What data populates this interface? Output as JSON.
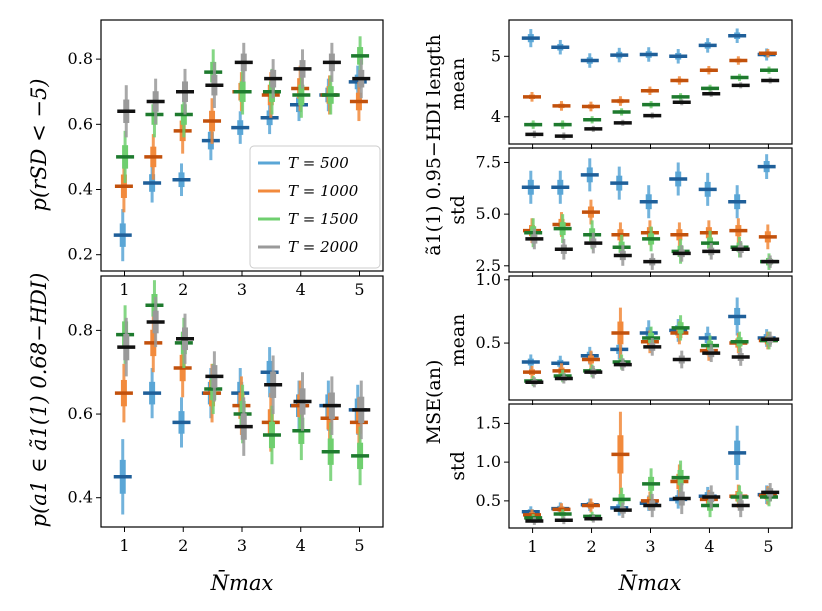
{
  "colors": {
    "T500": "#5aa6d6",
    "T1000": "#f28a3c",
    "T1500": "#6fcf6f",
    "T2000": "#9a9a9a",
    "T500_dark": "#1f5f99",
    "T1000_dark": "#c2510c",
    "T1500_dark": "#1e7a2e",
    "T2000_dark": "#111111"
  },
  "labels": {
    "xlabel": "N̄max",
    "left_top_ylabel": "p(rSD < −5)",
    "left_bottom_ylabel": "p(a1 ∈ ã1(1) 0.68−HDI)",
    "right_group1_ylabel": "ã1(1) 0.95−HDI length",
    "right_group2_ylabel": "MSE(an)",
    "right_r1_sub": "mean",
    "right_r2_sub": "std",
    "right_r3_sub": "mean",
    "right_r4_sub": "std"
  },
  "chart_data": [
    {
      "id": "left_top",
      "type": "scatter",
      "ylabel": "p(rSD < −5)",
      "xlabel": "N̄max",
      "xlim": [
        0.6,
        5.4
      ],
      "ylim": [
        0.15,
        0.92
      ],
      "yticks": [
        0.2,
        0.4,
        0.6,
        0.8
      ],
      "ytick_labels": [
        "0.2",
        "0.4",
        "0.6",
        "0.8"
      ],
      "xticks": [
        1,
        2,
        3,
        4,
        5
      ],
      "xtick_labels": [
        "1",
        "2",
        "3",
        "4",
        "5"
      ],
      "legend": {
        "location": "lower-right",
        "entries": [
          "T = 500",
          "T = 1000",
          "T = 1500",
          "T = 2000"
        ]
      },
      "x": [
        1.0,
        1.5,
        2.0,
        2.5,
        3.0,
        3.5,
        4.0,
        4.5,
        5.0
      ],
      "series": [
        {
          "name": "T = 500",
          "values": [
            0.26,
            0.42,
            0.43,
            0.55,
            0.59,
            0.62,
            0.66,
            0.69,
            0.73
          ],
          "spread": [
            0.08,
            0.06,
            0.05,
            0.06,
            0.05,
            0.05,
            0.05,
            0.05,
            0.05
          ]
        },
        {
          "name": "T = 1000",
          "values": [
            0.41,
            0.5,
            0.58,
            0.61,
            0.7,
            0.69,
            0.71,
            0.69,
            0.67
          ],
          "spread": [
            0.08,
            0.07,
            0.07,
            0.07,
            0.06,
            0.07,
            0.07,
            0.06,
            0.06
          ]
        },
        {
          "name": "T = 1500",
          "values": [
            0.5,
            0.63,
            0.63,
            0.76,
            0.7,
            0.7,
            0.69,
            0.69,
            0.81
          ],
          "spread": [
            0.08,
            0.07,
            0.07,
            0.07,
            0.07,
            0.07,
            0.07,
            0.06,
            0.06
          ]
        },
        {
          "name": "T = 2000",
          "values": [
            0.64,
            0.67,
            0.7,
            0.72,
            0.79,
            0.74,
            0.77,
            0.79,
            0.74
          ],
          "spread": [
            0.08,
            0.07,
            0.07,
            0.07,
            0.06,
            0.06,
            0.06,
            0.06,
            0.06
          ]
        }
      ]
    },
    {
      "id": "left_bottom",
      "type": "scatter",
      "ylabel": "p(a1 ∈ ã1(1) 0.68−HDI)",
      "xlabel": "N̄max",
      "xlim": [
        0.6,
        5.4
      ],
      "ylim": [
        0.33,
        0.93
      ],
      "yticks": [
        0.4,
        0.6,
        0.8
      ],
      "ytick_labels": [
        "0.4",
        "0.6",
        "0.8"
      ],
      "xticks": [
        1,
        2,
        3,
        4,
        5
      ],
      "xtick_labels": [
        "1",
        "2",
        "3",
        "4",
        "5"
      ],
      "x": [
        1.0,
        1.5,
        2.0,
        2.5,
        3.0,
        3.5,
        4.0,
        4.5,
        5.0
      ],
      "series": [
        {
          "name": "T = 500",
          "values": [
            0.45,
            0.65,
            0.58,
            0.65,
            0.65,
            0.7,
            0.62,
            0.62,
            0.61
          ],
          "spread": [
            0.09,
            0.06,
            0.06,
            0.06,
            0.06,
            0.06,
            0.06,
            0.06,
            0.06
          ]
        },
        {
          "name": "T = 1000",
          "values": [
            0.65,
            0.77,
            0.71,
            0.65,
            0.62,
            0.58,
            0.62,
            0.59,
            0.58
          ],
          "spread": [
            0.07,
            0.07,
            0.07,
            0.07,
            0.07,
            0.07,
            0.06,
            0.06,
            0.06
          ]
        },
        {
          "name": "T = 1500",
          "values": [
            0.79,
            0.86,
            0.77,
            0.66,
            0.6,
            0.55,
            0.56,
            0.51,
            0.5
          ],
          "spread": [
            0.07,
            0.06,
            0.06,
            0.06,
            0.07,
            0.07,
            0.07,
            0.07,
            0.07
          ]
        },
        {
          "name": "T = 2000",
          "values": [
            0.76,
            0.82,
            0.78,
            0.69,
            0.57,
            0.67,
            0.63,
            0.62,
            0.61
          ],
          "spread": [
            0.07,
            0.06,
            0.06,
            0.06,
            0.07,
            0.07,
            0.07,
            0.07,
            0.07
          ]
        }
      ]
    },
    {
      "id": "right_r1",
      "type": "scatter",
      "ylabel": "mean",
      "xlim": [
        0.6,
        5.4
      ],
      "ylim": [
        3.55,
        5.6
      ],
      "yticks": [
        4,
        5
      ],
      "ytick_labels": [
        "4",
        "5"
      ],
      "xticks": [
        1,
        2,
        3,
        4,
        5
      ],
      "x": [
        1.0,
        1.5,
        2.0,
        2.5,
        3.0,
        3.5,
        4.0,
        4.5,
        5.0
      ],
      "series": [
        {
          "name": "T = 500",
          "values": [
            5.3,
            5.15,
            4.93,
            5.02,
            5.03,
            5.0,
            5.18,
            5.34,
            5.03
          ],
          "spread": [
            0.15,
            0.12,
            0.12,
            0.12,
            0.12,
            0.12,
            0.12,
            0.12,
            0.1
          ]
        },
        {
          "name": "T = 1000",
          "values": [
            4.33,
            4.18,
            4.17,
            4.26,
            4.43,
            4.6,
            4.77,
            4.93,
            5.05
          ],
          "spread": [
            0.08,
            0.08,
            0.08,
            0.08,
            0.07,
            0.07,
            0.07,
            0.07,
            0.07
          ]
        },
        {
          "name": "T = 1500",
          "values": [
            3.87,
            3.87,
            3.95,
            4.08,
            4.2,
            4.33,
            4.47,
            4.65,
            4.77
          ],
          "spread": [
            0.07,
            0.07,
            0.06,
            0.06,
            0.06,
            0.06,
            0.06,
            0.06,
            0.06
          ]
        },
        {
          "name": "T = 2000",
          "values": [
            3.71,
            3.68,
            3.8,
            3.9,
            4.02,
            4.24,
            4.38,
            4.52,
            4.6
          ],
          "spread": [
            0.06,
            0.06,
            0.05,
            0.05,
            0.05,
            0.05,
            0.05,
            0.05,
            0.05
          ]
        }
      ]
    },
    {
      "id": "right_r2",
      "type": "scatter",
      "ylabel": "std",
      "xlim": [
        0.6,
        5.4
      ],
      "ylim": [
        2.2,
        8.2
      ],
      "yticks": [
        2.5,
        5.0,
        7.5
      ],
      "ytick_labels": [
        "2.5",
        "5.0",
        "7.5"
      ],
      "xticks": [
        1,
        2,
        3,
        4,
        5
      ],
      "x": [
        1.0,
        1.5,
        2.0,
        2.5,
        3.0,
        3.5,
        4.0,
        4.5,
        5.0
      ],
      "series": [
        {
          "name": "T = 500",
          "values": [
            6.3,
            6.3,
            6.9,
            6.5,
            5.6,
            6.7,
            6.2,
            5.6,
            7.3
          ],
          "spread": [
            0.8,
            0.8,
            0.8,
            0.8,
            0.8,
            0.8,
            0.8,
            0.8,
            0.6
          ]
        },
        {
          "name": "T = 1000",
          "values": [
            4.2,
            4.5,
            5.1,
            4.0,
            4.1,
            4.0,
            4.1,
            4.2,
            3.9
          ],
          "spread": [
            0.6,
            0.6,
            0.6,
            0.6,
            0.6,
            0.6,
            0.6,
            0.6,
            0.6
          ]
        },
        {
          "name": "T = 1500",
          "values": [
            4.1,
            4.3,
            4.0,
            3.4,
            3.8,
            3.2,
            3.6,
            3.4,
            2.7
          ],
          "spread": [
            0.7,
            0.7,
            0.7,
            0.6,
            0.6,
            0.6,
            0.6,
            0.5,
            0.4
          ]
        },
        {
          "name": "T = 2000",
          "values": [
            3.8,
            3.3,
            3.6,
            3.0,
            2.7,
            3.1,
            3.2,
            3.3,
            2.7
          ],
          "spread": [
            0.5,
            0.5,
            0.5,
            0.5,
            0.4,
            0.4,
            0.4,
            0.4,
            0.3
          ]
        }
      ]
    },
    {
      "id": "right_r3",
      "type": "scatter",
      "ylabel": "mean",
      "xlim": [
        0.6,
        5.4
      ],
      "ylim": [
        0.05,
        1.03
      ],
      "yticks": [
        0.5,
        1.0
      ],
      "ytick_labels": [
        "0.5",
        "1.0"
      ],
      "xticks": [
        1,
        2,
        3,
        4,
        5
      ],
      "x": [
        1.0,
        1.5,
        2.0,
        2.5,
        3.0,
        3.5,
        4.0,
        4.5,
        5.0
      ],
      "series": [
        {
          "name": "T = 500",
          "values": [
            0.35,
            0.34,
            0.4,
            0.45,
            0.58,
            0.6,
            0.54,
            0.71,
            0.54
          ],
          "spread": [
            0.06,
            0.06,
            0.07,
            0.08,
            0.1,
            0.09,
            0.09,
            0.15,
            0.07
          ]
        },
        {
          "name": "T = 1000",
          "values": [
            0.27,
            0.28,
            0.37,
            0.58,
            0.51,
            0.58,
            0.44,
            0.5,
            0.52
          ],
          "spread": [
            0.05,
            0.06,
            0.07,
            0.2,
            0.09,
            0.09,
            0.08,
            0.08,
            0.07
          ]
        },
        {
          "name": "T = 1500",
          "values": [
            0.2,
            0.24,
            0.28,
            0.35,
            0.54,
            0.62,
            0.48,
            0.51,
            0.52
          ],
          "spread": [
            0.04,
            0.05,
            0.05,
            0.06,
            0.09,
            0.1,
            0.08,
            0.08,
            0.07
          ]
        },
        {
          "name": "T = 2000",
          "values": [
            0.19,
            0.22,
            0.27,
            0.33,
            0.47,
            0.37,
            0.42,
            0.39,
            0.53
          ],
          "spread": [
            0.04,
            0.04,
            0.05,
            0.05,
            0.07,
            0.07,
            0.07,
            0.07,
            0.06
          ]
        }
      ]
    },
    {
      "id": "right_r4",
      "type": "scatter",
      "ylabel": "std",
      "xlabel": "N̄max",
      "xlim": [
        0.6,
        5.4
      ],
      "ylim": [
        0.15,
        1.75
      ],
      "yticks": [
        0.5,
        1.0,
        1.5
      ],
      "ytick_labels": [
        "0.5",
        "1.0",
        "1.5"
      ],
      "xticks": [
        1,
        2,
        3,
        4,
        5
      ],
      "xtick_labels": [
        "1",
        "2",
        "3",
        "4",
        "5"
      ],
      "x": [
        1.0,
        1.5,
        2.0,
        2.5,
        3.0,
        3.5,
        4.0,
        4.5,
        5.0
      ],
      "series": [
        {
          "name": "T = 500",
          "values": [
            0.36,
            0.4,
            0.45,
            0.41,
            0.47,
            0.52,
            0.56,
            1.12,
            0.58
          ],
          "spread": [
            0.07,
            0.08,
            0.08,
            0.1,
            0.1,
            0.12,
            0.12,
            0.35,
            0.12
          ]
        },
        {
          "name": "T = 1000",
          "values": [
            0.32,
            0.39,
            0.44,
            1.1,
            0.5,
            0.75,
            0.52,
            0.56,
            0.57
          ],
          "spread": [
            0.07,
            0.08,
            0.09,
            0.55,
            0.12,
            0.22,
            0.12,
            0.15,
            0.12
          ]
        },
        {
          "name": "T = 1500",
          "values": [
            0.28,
            0.33,
            0.3,
            0.52,
            0.72,
            0.8,
            0.44,
            0.55,
            0.55
          ],
          "spread": [
            0.05,
            0.06,
            0.06,
            0.15,
            0.2,
            0.22,
            0.15,
            0.15,
            0.12
          ]
        },
        {
          "name": "T = 2000",
          "values": [
            0.24,
            0.25,
            0.27,
            0.38,
            0.44,
            0.53,
            0.55,
            0.44,
            0.61
          ],
          "spread": [
            0.05,
            0.05,
            0.05,
            0.1,
            0.15,
            0.2,
            0.15,
            0.15,
            0.12
          ]
        }
      ]
    }
  ]
}
